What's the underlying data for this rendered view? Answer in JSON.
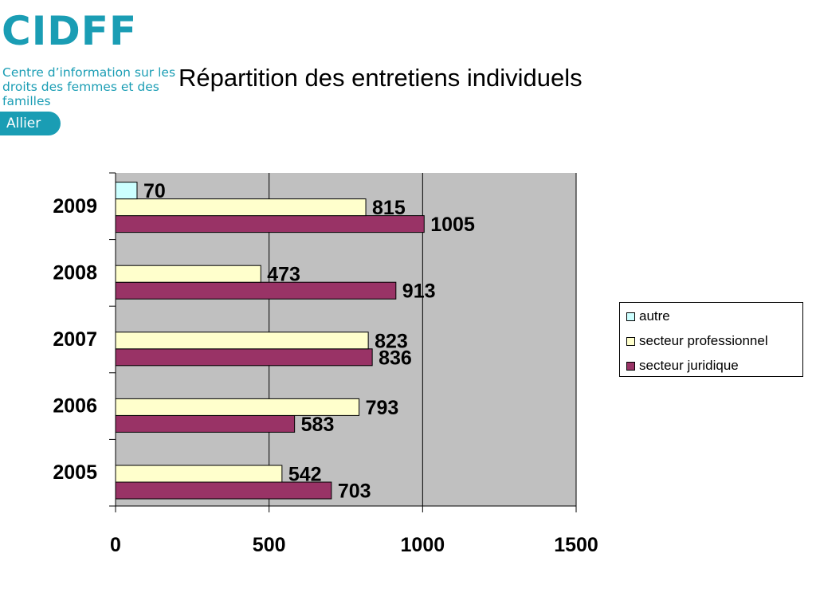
{
  "logo": {
    "wordmark": "CIDFF",
    "tagline": "Centre d’information sur les droits des femmes et des familles",
    "badge": "Allier",
    "color": "#1a9db4"
  },
  "title": "Répartition des entretiens individuels",
  "chart_data": {
    "type": "bar",
    "orientation": "horizontal",
    "title": "Répartition des entretiens individuels",
    "categories": [
      "2005",
      "2006",
      "2007",
      "2008",
      "2009"
    ],
    "series": [
      {
        "name": "secteur juridique",
        "color": "#993366",
        "values": [
          703,
          583,
          836,
          913,
          1005
        ]
      },
      {
        "name": "secteur professionnel",
        "color": "#ffffcc",
        "values": [
          542,
          793,
          823,
          473,
          815
        ]
      },
      {
        "name": "autre",
        "color": "#ccffff",
        "values": [
          null,
          null,
          null,
          null,
          70
        ]
      }
    ],
    "xlim": [
      0,
      1500
    ],
    "xticks": [
      0,
      500,
      1000,
      1500
    ],
    "grid": true,
    "plot_background": "#c0c0c0",
    "legend": {
      "position": "right",
      "order": [
        "autre",
        "secteur professionnel",
        "secteur juridique"
      ]
    },
    "data_labels": true
  }
}
